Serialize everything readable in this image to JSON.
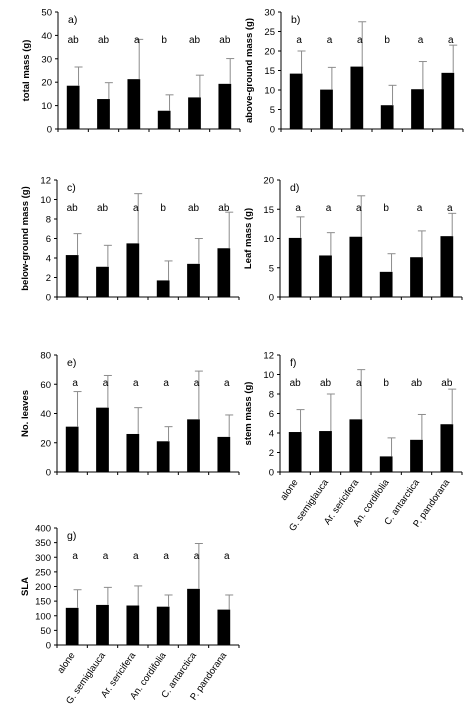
{
  "chart_data": [
    {
      "type": "bar",
      "panel_label": "a)",
      "categories": [
        "alone",
        "G. semiglauca",
        "Ar. sericifera",
        "An. cordifolia",
        "C. antarctica",
        "P. pandorana"
      ],
      "values": [
        18.5,
        12.8,
        21.3,
        7.8,
        13.5,
        19.3
      ],
      "errors": [
        8.0,
        7.0,
        17.0,
        6.8,
        9.5,
        10.8
      ],
      "significance": [
        "ab",
        "ab",
        "a",
        "b",
        "ab",
        "ab"
      ],
      "ylabel": "total mass (g)",
      "ylim": [
        0,
        50
      ],
      "yticks": [
        0,
        10,
        20,
        30,
        40,
        50
      ],
      "show_category_labels": false
    },
    {
      "type": "bar",
      "panel_label": "b)",
      "categories": [
        "alone",
        "G. semiglauca",
        "Ar. sericifera",
        "An. cordifolia",
        "C. antarctica",
        "P. pandorana"
      ],
      "values": [
        14.2,
        10.1,
        16.0,
        6.1,
        10.2,
        14.4
      ],
      "errors": [
        5.8,
        5.7,
        11.5,
        5.1,
        7.1,
        7.1
      ],
      "significance": [
        "a",
        "a",
        "a",
        "b",
        "a",
        "a"
      ],
      "ylabel": "above-ground mass (g)",
      "ylim": [
        0,
        30
      ],
      "yticks": [
        0,
        5,
        10,
        15,
        20,
        25,
        30
      ],
      "show_category_labels": false
    },
    {
      "type": "bar",
      "panel_label": "c)",
      "categories": [
        "alone",
        "G. semiglauca",
        "Ar. sericifera",
        "An. cordifolia",
        "C. antarctica",
        "P. pandorana"
      ],
      "values": [
        4.3,
        3.1,
        5.5,
        1.7,
        3.4,
        5.0
      ],
      "errors": [
        2.2,
        2.2,
        5.1,
        2.0,
        2.6,
        3.7
      ],
      "significance": [
        "ab",
        "ab",
        "a",
        "b",
        "ab",
        "ab"
      ],
      "ylabel": "below-ground mass (g)",
      "ylim": [
        0,
        12
      ],
      "yticks": [
        0,
        2,
        4,
        6,
        8,
        10,
        12
      ],
      "show_category_labels": false
    },
    {
      "type": "bar",
      "panel_label": "d)",
      "categories": [
        "alone",
        "G. semiglauca",
        "Ar. sericifera",
        "An. cordifolia",
        "C. antarctica",
        "P. pandorana"
      ],
      "values": [
        10.1,
        7.1,
        10.3,
        4.3,
        6.8,
        10.4
      ],
      "errors": [
        3.6,
        3.9,
        7.0,
        3.1,
        4.5,
        3.9
      ],
      "significance": [
        "a",
        "a",
        "a",
        "b",
        "a",
        "a"
      ],
      "ylabel": "Leaf mass (g)",
      "ylim": [
        0,
        20
      ],
      "yticks": [
        0,
        5,
        10,
        15,
        20
      ],
      "show_category_labels": false
    },
    {
      "type": "bar",
      "panel_label": "e)",
      "categories": [
        "alone",
        "G. semiglauca",
        "Ar. sericifera",
        "An. cordifolia",
        "C. antarctica",
        "P. pandorana"
      ],
      "values": [
        31,
        44,
        26,
        21,
        36,
        24
      ],
      "errors": [
        24,
        22,
        18,
        10,
        33,
        15
      ],
      "significance": [
        "a",
        "a",
        "a",
        "a",
        "a",
        "a"
      ],
      "ylabel": "No. leaves",
      "ylim": [
        0,
        80
      ],
      "yticks": [
        0,
        20,
        40,
        60,
        80
      ],
      "show_category_labels": false
    },
    {
      "type": "bar",
      "panel_label": "f)",
      "categories": [
        "alone",
        "G. semiglauca",
        "Ar. sericifera",
        "An. cordifolia",
        "C. antarctica",
        "P. pandorana"
      ],
      "values": [
        4.1,
        4.2,
        5.4,
        1.6,
        3.3,
        4.9
      ],
      "errors": [
        2.3,
        3.8,
        5.1,
        1.9,
        2.6,
        3.6
      ],
      "significance": [
        "ab",
        "ab",
        "a",
        "b",
        "ab",
        "ab"
      ],
      "ylabel": "stem mass (g)",
      "ylim": [
        0,
        12
      ],
      "yticks": [
        0,
        2,
        4,
        6,
        8,
        10,
        12
      ],
      "show_category_labels": true
    },
    {
      "type": "bar",
      "panel_label": "g)",
      "categories": [
        "alone",
        "G. semiglauca",
        "Ar. sericifera",
        "An. cordifolia",
        "C. antarctica",
        "P. pandorana"
      ],
      "values": [
        127,
        137,
        135,
        131,
        192,
        121
      ],
      "errors": [
        62,
        60,
        67,
        40,
        155,
        50
      ],
      "significance": [
        "a",
        "a",
        "a",
        "a",
        "a",
        "a"
      ],
      "ylabel": "SLA",
      "ylim": [
        0,
        400
      ],
      "yticks": [
        0,
        50,
        100,
        150,
        200,
        250,
        300,
        350,
        400
      ],
      "show_category_labels": true
    }
  ]
}
